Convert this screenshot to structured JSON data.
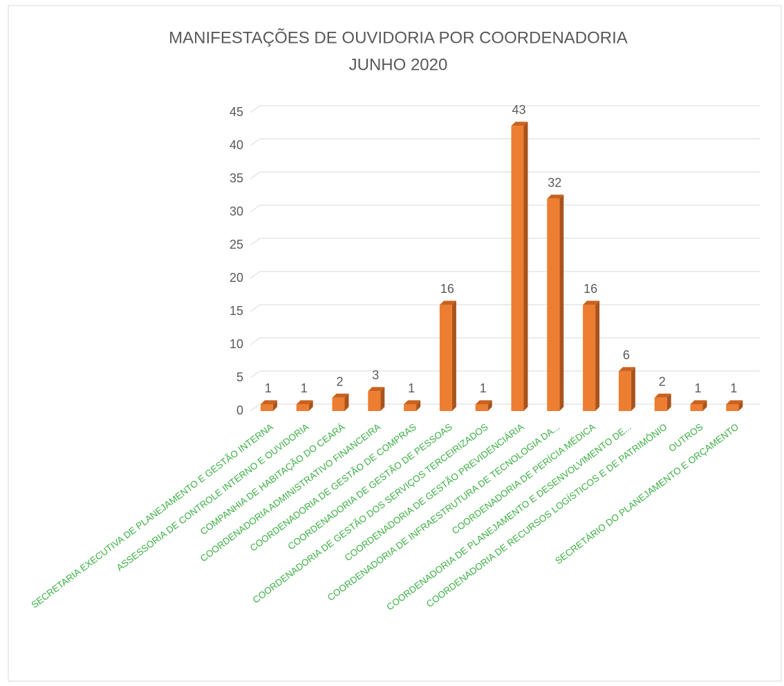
{
  "chart_data": {
    "type": "bar3d",
    "title": [
      "MANIFESTAÇÕES DE OUVIDORIA POR COORDENADORIA",
      "JUNHO 2020"
    ],
    "categories": [
      "SECRETARIA EXECUTIVA DE PLANEJAMENTO E GESTÃO INTERNA",
      "ASSESSORIA DE CONTROLE INTERNO E OUVIDORIA",
      "COMPANHIA DE HABITAÇÃO DO CEARÁ",
      "COORDENADORIA ADMINISTRATIVO FINANCEIRA",
      "COORDENADORIA DE GESTÃO DE COMPRAS",
      "COORDENADORIA DE GESTÃO DE PESSOAS",
      "COORDENADORIA DE GESTÃO DOS SERVIÇOS TERCEIRIZADOS",
      "COORDENADORIA DE GESTÃO PREVIDENCIÁRIA",
      "COORDENADORIA DE INFRAESTRUTURA DE TECNOLOGIA DA...",
      "COORDENADORIA DE PERÍCIA MÉDICA",
      "COORDENADORIA DE PLANEJAMENTO E DESENVOLVIMENTO DE...",
      "COORDENADORIA DE RECURSOS LOGÍSTICOS E DE PATRIMÔNIO",
      "OUTROS",
      "SECRETÁRIO DO PLANEJAMENTO E ORÇAMENTO"
    ],
    "values": [
      1,
      1,
      2,
      3,
      1,
      16,
      1,
      43,
      32,
      16,
      6,
      2,
      1,
      1
    ],
    "color": "#ed7d31",
    "label_color": "#3cb043",
    "ylim": [
      0,
      45
    ],
    "yticks": [
      0,
      5,
      10,
      15,
      20,
      25,
      30,
      35,
      40,
      45
    ],
    "grid": true
  }
}
